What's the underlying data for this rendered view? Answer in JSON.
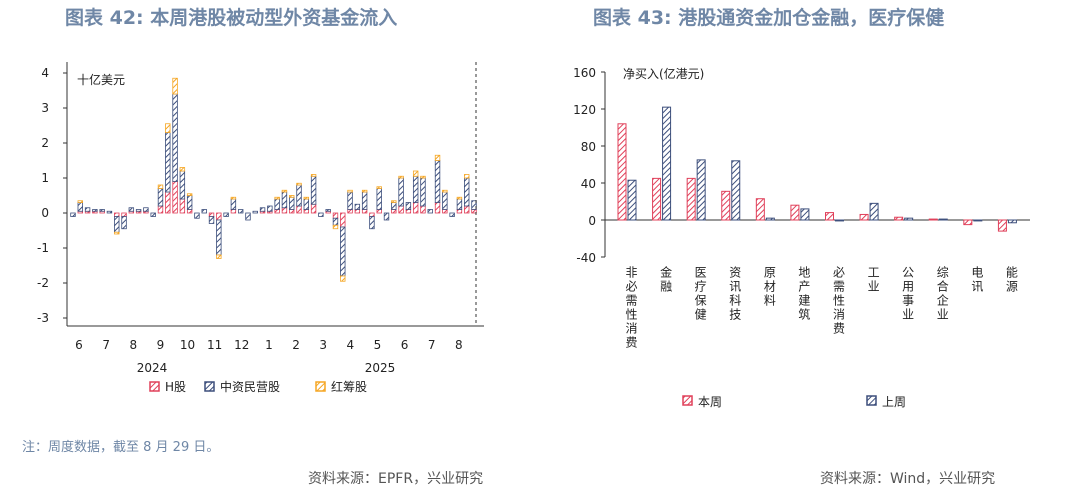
{
  "titles": {
    "left": "图表 42: 本周港股被动型外资基金流入",
    "right": "图表 43: 港股通资金加仓金融，医疗保健"
  },
  "note": "注：周度数据，截至 8 月 29 日。",
  "sources": {
    "left": "资料来源：EPFR，兴业研究",
    "right": "资料来源：Wind，兴业研究"
  },
  "chart_data": [
    {
      "type": "bar",
      "stacked": true,
      "unit_label": "十亿美元",
      "ylim": [
        -3,
        4
      ],
      "yticks": [
        "4",
        "3",
        "2",
        "1",
        "0",
        "-1",
        "-2",
        "-3"
      ],
      "month_labels": [
        "6",
        "7",
        "8",
        "9",
        "10",
        "11",
        "12",
        "1",
        "2",
        "3",
        "4",
        "5",
        "6",
        "7",
        "8"
      ],
      "year_labels": [
        "2024",
        "2025"
      ],
      "legend": [
        "H股",
        "中资民营股",
        "红筹股"
      ],
      "colors": {
        "H股": "#e0405a",
        "中资民营股": "#3d4f7c",
        "红筹股": "#f5a623"
      },
      "weeks": [
        [
          0.0,
          -0.1,
          0.0
        ],
        [
          0.05,
          0.25,
          0.05
        ],
        [
          0.05,
          0.1,
          0.0
        ],
        [
          0.05,
          0.05,
          0.0
        ],
        [
          0.05,
          0.05,
          0.0
        ],
        [
          0.0,
          0.05,
          0.0
        ],
        [
          -0.1,
          -0.45,
          -0.05
        ],
        [
          -0.1,
          -0.35,
          0.0
        ],
        [
          0.05,
          0.1,
          0.0
        ],
        [
          0.05,
          0.05,
          0.0
        ],
        [
          0.05,
          0.1,
          0.0
        ],
        [
          0.0,
          -0.1,
          0.0
        ],
        [
          0.2,
          0.5,
          0.1
        ],
        [
          0.6,
          1.7,
          0.25
        ],
        [
          0.9,
          2.5,
          0.45
        ],
        [
          0.4,
          0.8,
          0.1
        ],
        [
          0.1,
          0.4,
          0.05
        ],
        [
          0.0,
          -0.15,
          0.0
        ],
        [
          0.0,
          0.1,
          0.0
        ],
        [
          -0.1,
          -0.2,
          0.0
        ],
        [
          -0.2,
          -1.0,
          -0.1
        ],
        [
          0.0,
          -0.1,
          0.0
        ],
        [
          0.1,
          0.3,
          0.05
        ],
        [
          0.0,
          0.1,
          0.0
        ],
        [
          0.0,
          -0.2,
          0.0
        ],
        [
          0.0,
          0.05,
          0.0
        ],
        [
          0.05,
          0.1,
          0.0
        ],
        [
          0.05,
          0.15,
          0.0
        ],
        [
          0.1,
          0.3,
          0.05
        ],
        [
          0.15,
          0.45,
          0.05
        ],
        [
          0.1,
          0.35,
          0.05
        ],
        [
          0.2,
          0.6,
          0.05
        ],
        [
          0.1,
          0.3,
          0.05
        ],
        [
          0.25,
          0.8,
          0.05
        ],
        [
          0.0,
          -0.1,
          0.0
        ],
        [
          0.05,
          0.05,
          0.0
        ],
        [
          -0.15,
          -0.2,
          -0.1
        ],
        [
          -0.4,
          -1.4,
          -0.15
        ],
        [
          0.1,
          0.5,
          0.05
        ],
        [
          0.1,
          0.15,
          0.0
        ],
        [
          0.1,
          0.5,
          0.05
        ],
        [
          -0.1,
          -0.35,
          0.0
        ],
        [
          0.1,
          0.6,
          0.05
        ],
        [
          0.0,
          -0.2,
          0.0
        ],
        [
          0.1,
          0.2,
          0.05
        ],
        [
          0.2,
          0.8,
          0.05
        ],
        [
          0.1,
          0.2,
          0.0
        ],
        [
          0.3,
          0.75,
          0.15
        ],
        [
          0.2,
          0.8,
          0.05
        ],
        [
          0.0,
          0.1,
          0.0
        ],
        [
          0.3,
          1.2,
          0.15
        ],
        [
          0.1,
          0.5,
          0.05
        ],
        [
          0.0,
          -0.1,
          0.0
        ],
        [
          0.1,
          0.3,
          0.05
        ],
        [
          0.2,
          0.8,
          0.1
        ],
        [
          0.1,
          0.25,
          0.0
        ]
      ]
    },
    {
      "type": "bar",
      "unit_label": "净买入(亿港元)",
      "ylim": [
        -40,
        160
      ],
      "yticks": [
        "160",
        "120",
        "80",
        "40",
        "0",
        "-40"
      ],
      "categories": [
        "非必需性消费",
        "金融",
        "医疗保健",
        "资讯科技",
        "原材料",
        "地产建筑",
        "必需性消费",
        "工业",
        "公用事业",
        "综合企业",
        "电讯",
        "能源"
      ],
      "series": [
        {
          "name": "本周",
          "color": "#e0405a",
          "values": [
            104,
            45,
            45,
            31,
            23,
            16,
            8,
            6,
            3,
            1,
            -5,
            -12
          ]
        },
        {
          "name": "上周",
          "color": "#3d4f7c",
          "values": [
            43,
            122,
            65,
            64,
            2,
            12,
            -1,
            18,
            2,
            1,
            -1,
            -3
          ]
        }
      ]
    }
  ]
}
